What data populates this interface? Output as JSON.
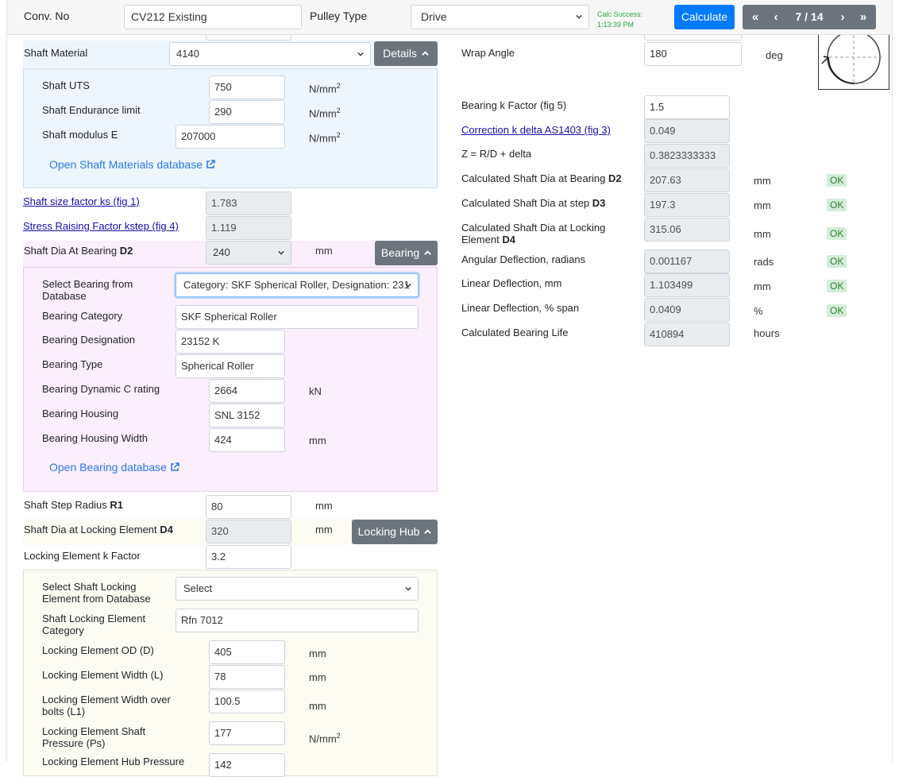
{
  "header": {
    "conv_label": "Conv. No",
    "conv_value": "CV212 Existing",
    "pulley_label": "Pulley Type",
    "pulley_value": "Drive",
    "calc_status": "Calc Success:",
    "calc_time": "1:13:39 PM",
    "calculate_label": "Calculate",
    "pager": {
      "first": "«",
      "prev": "‹",
      "position": "7 / 14",
      "next": "›",
      "last": "»"
    }
  },
  "left": {
    "shaft_material_label": "Shaft Material",
    "shaft_material_value": "4140",
    "details_button": "Details",
    "materials": {
      "uts_label": "Shaft UTS",
      "uts_value": "750",
      "uts_unit": "N/mm",
      "endurance_label": "Shaft Endurance limit",
      "endurance_value": "290",
      "endurance_unit": "N/mm",
      "modulus_label": "Shaft modulus E",
      "modulus_value": "207000",
      "modulus_unit": "N/mm",
      "unit_sup": "2",
      "db_link": "Open Shaft Materials database"
    },
    "size_factor_link": "Shaft size factor ks (fig 1)",
    "size_factor_value": "1.783",
    "stress_factor_link": "Stress Raising Factor kstep (fig 4)",
    "stress_factor_value": "1.119",
    "dia_bearing_label": "Shaft Dia At Bearing",
    "dia_bearing_bold": "D2",
    "dia_bearing_value": "240",
    "dia_bearing_unit": "mm",
    "bearing_button": "Bearing",
    "bearing": {
      "select_label": "Select Bearing from Database",
      "select_value": "Category: SKF Spherical Roller, Designation: 231",
      "category_label": "Bearing Category",
      "category_value": "SKF Spherical Roller",
      "designation_label": "Bearing Designation",
      "designation_value": "23152 K",
      "type_label": "Bearing Type",
      "type_value": "Spherical Roller",
      "dynamic_label": "Bearing Dynamic C rating",
      "dynamic_value": "2664",
      "dynamic_unit": "kN",
      "housing_label": "Bearing Housing",
      "housing_value": "SNL 3152",
      "housing_width_label": "Bearing Housing Width",
      "housing_width_value": "424",
      "housing_width_unit": "mm",
      "db_link": "Open Bearing database"
    },
    "step_radius_label": "Shaft Step Radius",
    "step_radius_bold": "R1",
    "step_radius_value": "80",
    "step_radius_unit": "mm",
    "dia_locking_label": "Shaft Dia at Locking Element",
    "dia_locking_bold": "D4",
    "dia_locking_value": "320",
    "dia_locking_unit": "mm",
    "locking_button": "Locking Hub",
    "locking_k_label": "Locking Element k Factor",
    "locking_k_value": "3.2",
    "locking": {
      "select_label": "Select Shaft Locking Element from Database",
      "select_value": "Select",
      "category_label": "Shaft Locking Element Category",
      "category_value": "Rfn 7012",
      "od_label": "Locking Element OD (D)",
      "od_value": "405",
      "od_unit": "mm",
      "width_label": "Locking Element Width (L)",
      "width_value": "78",
      "width_unit": "mm",
      "width_bolts_label": "Locking Element Width over bolts (L1)",
      "width_bolts_value": "100.5",
      "width_bolts_unit": "mm",
      "pressure_label": "Locking Element Shaft Pressure (Ps)",
      "pressure_value": "177",
      "pressure_unit": "N/mm",
      "pressure_sup": "2",
      "hub_pressure_label": "Locking Element Hub Pressure",
      "hub_pressure_value": "142"
    }
  },
  "right": {
    "wrap_angle_label": "Wrap Angle",
    "wrap_angle_value": "180",
    "wrap_angle_unit": "deg",
    "k_factor_label": "Bearing k Factor (fig 5)",
    "k_factor_value": "1.5",
    "correction_link": "Correction k delta AS1403 (fig 3)",
    "correction_value": "0.049",
    "z_label": "Z = R/D + delta",
    "z_value": "0.3823333333",
    "d2_label": "Calculated Shaft Dia at Bearing",
    "d2_bold": "D2",
    "d2_value": "207.63",
    "d2_unit": "mm",
    "d2_status": "OK",
    "d3_label": "Calculated Shaft Dia at step",
    "d3_bold": "D3",
    "d3_value": "197.3",
    "d3_unit": "mm",
    "d3_status": "OK",
    "d4_label": "Calculated Shaft Dia at Locking Element",
    "d4_bold": "D4",
    "d4_value": "315.06",
    "d4_unit": "mm",
    "d4_status": "OK",
    "angular_label": "Angular Deflection, radians",
    "angular_value": "0.001167",
    "angular_unit": "rads",
    "angular_status": "OK",
    "linear_label": "Linear Deflection, mm",
    "linear_value": "1.103499",
    "linear_unit": "mm",
    "linear_status": "OK",
    "linear_pct_label": "Linear Deflection, % span",
    "linear_pct_value": "0.0409",
    "linear_pct_unit": "%",
    "linear_pct_status": "OK",
    "life_label": "Calculated Bearing Life",
    "life_value": "410894",
    "life_unit": "hours"
  },
  "colors": {
    "accent": "#007bff",
    "button_gray": "#6c757d",
    "ok_bg": "#d4edda",
    "success_text": "#28a745",
    "materials_panel": "#edf5fd",
    "bearing_panel": "#fbeefd",
    "locking_panel": "#fcfcf3"
  },
  "icons": [
    "chevron-up-icon",
    "chevron-down-icon",
    "external-link-icon",
    "wrap-angle-diagram"
  ]
}
